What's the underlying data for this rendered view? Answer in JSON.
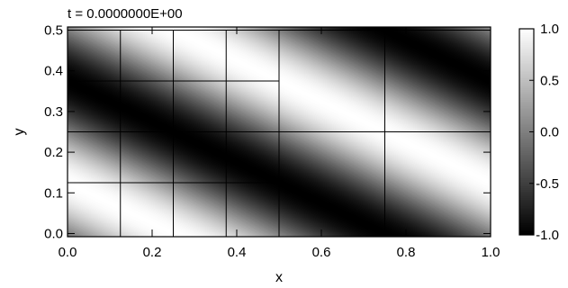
{
  "chart_data": {
    "type": "heatmap",
    "title": "t = 0.0000000E+00",
    "xlabel": "x",
    "ylabel": "y",
    "xlim": [
      0.0,
      1.0
    ],
    "ylim": [
      -0.0078,
      0.5078
    ],
    "xticks": [
      0.0,
      0.2,
      0.4,
      0.6,
      0.8,
      1.0
    ],
    "xtick_labels": [
      "0.0",
      "0.2",
      "0.4",
      "0.6",
      "0.8",
      "1.0"
    ],
    "yticks": [
      0.0,
      0.1,
      0.2,
      0.3,
      0.4,
      0.5
    ],
    "ytick_labels": [
      "0.0",
      "0.1",
      "0.2",
      "0.3",
      "0.4",
      "0.5"
    ],
    "field": "sin(2*pi*(x + 2*y))",
    "colormap": "grayscale",
    "colorbar": {
      "range": [
        -1.0,
        1.0
      ],
      "ticks": [
        1.0,
        0.5,
        0.0,
        -0.5,
        -1.0
      ],
      "tick_labels": [
        "1.0",
        "0.5",
        "0.0",
        "-0.5",
        "-1.0"
      ]
    },
    "mesh": {
      "cells": [
        {
          "x": [
            0.0,
            0.5
          ],
          "y": [
            0.0,
            0.5
          ],
          "children_x": [
            0.0,
            0.125,
            0.25,
            0.375,
            0.5
          ],
          "children_y": [
            0.0,
            0.125,
            0.25,
            0.375,
            0.5
          ]
        },
        {
          "x": [
            0.5,
            1.0
          ],
          "y": [
            0.0,
            0.5
          ],
          "children_x": [
            0.5,
            0.75,
            1.0
          ],
          "children_y": [
            0.0,
            0.25,
            0.5
          ]
        }
      ]
    },
    "grid": false,
    "legend": "colorbar-right"
  }
}
